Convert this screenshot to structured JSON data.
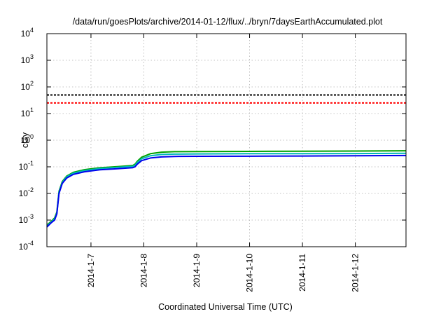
{
  "chart_data": {
    "type": "line",
    "title": "/data/run/goesPlots/archive/2014-01-12/flux/../bryn/7daysEarthAccumulated.plot",
    "xlabel": "Coordinated Universal Time (UTC)",
    "ylabel": "cGy",
    "yscale": "log",
    "xlim": [
      "2014-01-06T04:00",
      "2014-01-12T23:00"
    ],
    "ylim": [
      0.0001,
      10000
    ],
    "grid": true,
    "x_ticks": [
      {
        "x": "2014-01-07",
        "label": "2014-1-7"
      },
      {
        "x": "2014-01-08",
        "label": "2014-1-8"
      },
      {
        "x": "2014-01-09",
        "label": "2014-1-9"
      },
      {
        "x": "2014-01-10",
        "label": "2014-1-10"
      },
      {
        "x": "2014-01-11",
        "label": "2014-1-11"
      },
      {
        "x": "2014-01-12",
        "label": "2014-1-12"
      }
    ],
    "y_ticks": [
      {
        "y": 0.0001,
        "base": "10",
        "exp": "-4"
      },
      {
        "y": 0.001,
        "base": "10",
        "exp": "-3"
      },
      {
        "y": 0.01,
        "base": "10",
        "exp": "-2"
      },
      {
        "y": 0.1,
        "base": "10",
        "exp": "-1"
      },
      {
        "y": 1,
        "base": "10",
        "exp": "0"
      },
      {
        "y": 10,
        "base": "10",
        "exp": "1"
      },
      {
        "y": 100,
        "base": "10",
        "exp": "2"
      },
      {
        "y": 1000,
        "base": "10",
        "exp": "3"
      },
      {
        "y": 10000,
        "base": "10",
        "exp": "4"
      }
    ],
    "reference_lines": [
      {
        "y": 50,
        "color": "#000000",
        "style": "dashed"
      },
      {
        "y": 25,
        "color": "#ff0000",
        "style": "dashed"
      }
    ],
    "series": [
      {
        "color": "#00a000",
        "x": [
          "2014-01-06T04:00",
          "2014-01-06T06:00",
          "2014-01-06T07:30",
          "2014-01-06T08:30",
          "2014-01-06T09:30",
          "2014-01-06T11:00",
          "2014-01-06T13:00",
          "2014-01-06T16:00",
          "2014-01-06T21:00",
          "2014-01-07T04:00",
          "2014-01-07T12:00",
          "2014-01-07T19:00",
          "2014-01-07T20:00",
          "2014-01-07T21:00",
          "2014-01-07T23:00",
          "2014-01-08T03:00",
          "2014-01-08T08:00",
          "2014-01-08T14:00",
          "2014-01-09T00:00",
          "2014-01-10T00:00",
          "2014-01-11T00:00",
          "2014-01-12T00:00",
          "2014-01-12T23:00"
        ],
        "y": [
          0.00065,
          0.0009,
          0.0012,
          0.002,
          0.012,
          0.028,
          0.045,
          0.062,
          0.078,
          0.092,
          0.102,
          0.112,
          0.125,
          0.16,
          0.23,
          0.31,
          0.355,
          0.37,
          0.375,
          0.38,
          0.385,
          0.39,
          0.4
        ]
      },
      {
        "color": "#00b8b8",
        "x": [
          "2014-01-06T04:00",
          "2014-01-06T06:00",
          "2014-01-06T07:30",
          "2014-01-06T08:30",
          "2014-01-06T09:30",
          "2014-01-06T11:00",
          "2014-01-06T13:00",
          "2014-01-06T16:00",
          "2014-01-06T21:00",
          "2014-01-07T04:00",
          "2014-01-07T12:00",
          "2014-01-07T19:00",
          "2014-01-07T20:00",
          "2014-01-07T21:00",
          "2014-01-07T23:00",
          "2014-01-08T03:00",
          "2014-01-08T08:00",
          "2014-01-08T14:00",
          "2014-01-09T00:00",
          "2014-01-10T00:00",
          "2014-01-11T00:00",
          "2014-01-12T00:00",
          "2014-01-12T23:00"
        ],
        "y": [
          0.0006,
          0.00085,
          0.0011,
          0.0018,
          0.011,
          0.026,
          0.042,
          0.058,
          0.072,
          0.086,
          0.095,
          0.104,
          0.115,
          0.145,
          0.2,
          0.26,
          0.29,
          0.3,
          0.305,
          0.31,
          0.312,
          0.315,
          0.32
        ]
      },
      {
        "color": "#0000ee",
        "x": [
          "2014-01-06T04:00",
          "2014-01-06T06:00",
          "2014-01-06T07:30",
          "2014-01-06T08:30",
          "2014-01-06T09:30",
          "2014-01-06T11:00",
          "2014-01-06T13:00",
          "2014-01-06T16:00",
          "2014-01-06T21:00",
          "2014-01-07T04:00",
          "2014-01-07T12:00",
          "2014-01-07T19:00",
          "2014-01-07T20:00",
          "2014-01-07T21:00",
          "2014-01-07T23:00",
          "2014-01-08T03:00",
          "2014-01-08T08:00",
          "2014-01-08T14:00",
          "2014-01-09T00:00",
          "2014-01-10T00:00",
          "2014-01-11T00:00",
          "2014-01-12T00:00",
          "2014-01-12T23:00"
        ],
        "y": [
          0.00055,
          0.0008,
          0.001,
          0.0017,
          0.01,
          0.024,
          0.038,
          0.052,
          0.065,
          0.077,
          0.085,
          0.093,
          0.1,
          0.125,
          0.17,
          0.215,
          0.235,
          0.245,
          0.248,
          0.25,
          0.255,
          0.26,
          0.265
        ]
      }
    ]
  }
}
